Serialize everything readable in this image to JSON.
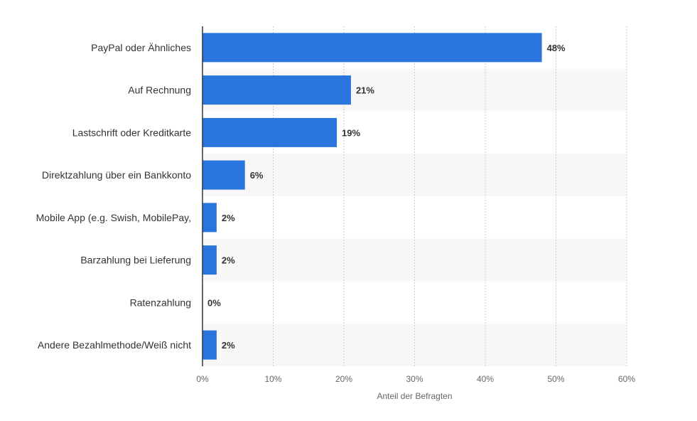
{
  "chart_data": {
    "type": "bar",
    "orientation": "horizontal",
    "categories": [
      "PayPal oder Ähnliches",
      "Auf Rechnung",
      "Lastschrift oder Kreditkarte",
      "Direktzahlung über ein Bankkonto",
      "Mobile App (e.g. Swish, MobilePay,",
      "Barzahlung bei Lieferung",
      "Ratenzahlung",
      "Andere Bezahlmethode/Weiß nicht"
    ],
    "values": [
      48,
      21,
      19,
      6,
      2,
      2,
      0,
      2
    ],
    "value_labels": [
      "48%",
      "21%",
      "19%",
      "6%",
      "2%",
      "2%",
      "0%",
      "2%"
    ],
    "xlabel": "Anteil der Befragten",
    "ylabel": "",
    "xlim": [
      0,
      60
    ],
    "ticks": [
      0,
      10,
      20,
      30,
      40,
      50,
      60
    ],
    "tick_labels": [
      "0%",
      "10%",
      "20%",
      "30%",
      "40%",
      "50%",
      "60%"
    ],
    "grid": "vertical dotted",
    "alternating_row_bands": true,
    "colors": {
      "bar": "#2876dd",
      "band": "#f7f7f7",
      "grid": "#cccccc",
      "axis": "#333333"
    }
  }
}
